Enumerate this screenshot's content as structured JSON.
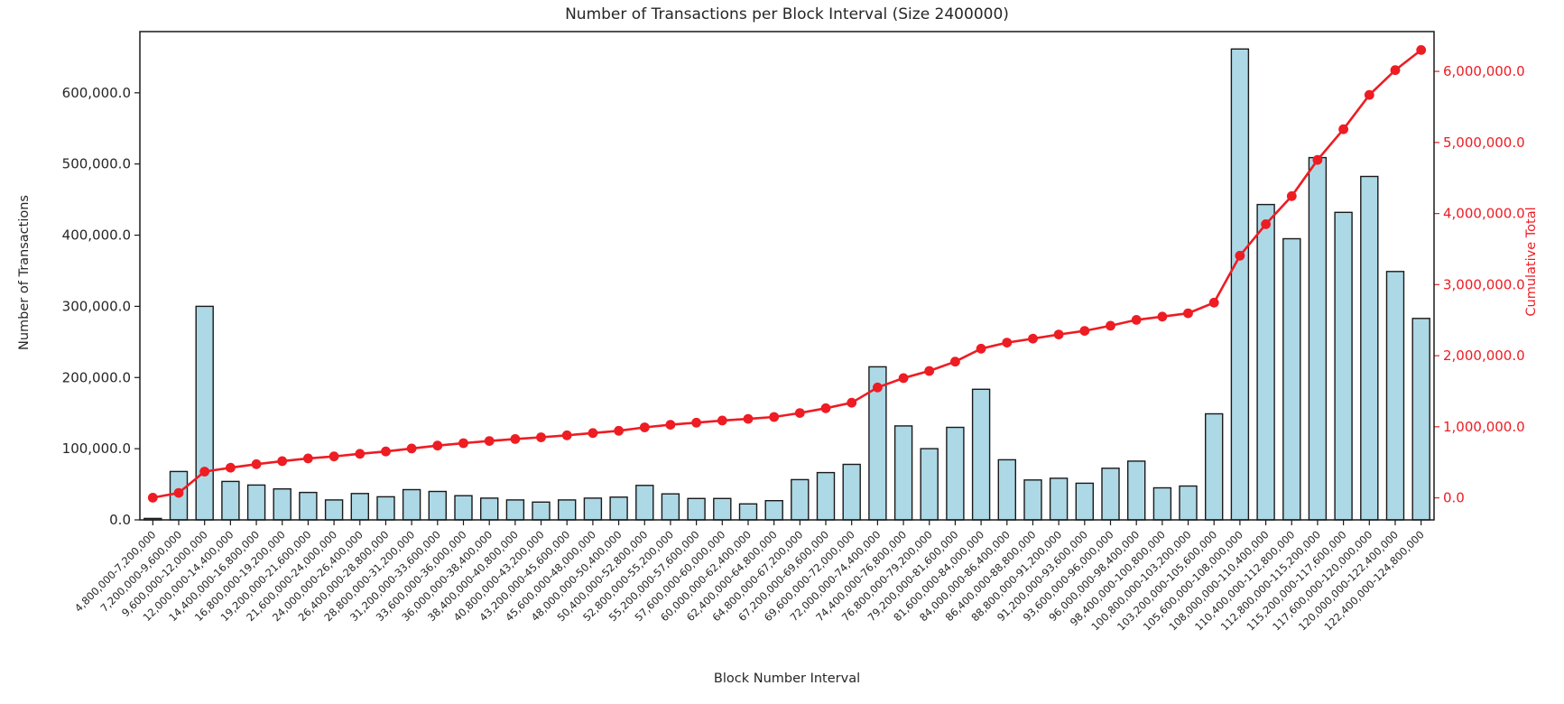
{
  "figure": {
    "title": "Number of Transactions per Block Interval (Size 2400000)",
    "xlabel": "Block Number Interval",
    "ylabel_left": "Number of Transactions",
    "ylabel_right": "Cumulative Total"
  },
  "colors": {
    "background": "#ffffff",
    "bar_fill": "#add8e6",
    "bar_edge": "#1a1a1a",
    "line": "#ee1c23",
    "marker": "#ee1c23",
    "right_axis_text": "#ee1c23",
    "axis_text": "#262626",
    "spine": "#1a1a1a"
  },
  "chart_data": {
    "type": "bar",
    "title": "Number of Transactions per Block Interval (Size 2400000)",
    "xlabel": "Block Number Interval",
    "ylabel_left": "Number of Transactions",
    "ylabel_right": "Cumulative Total",
    "grid": false,
    "legend_position": "none",
    "categories": [
      "4,800,000-7,200,000",
      "7,200,000-9,600,000",
      "9,600,000-12,000,000",
      "12,000,000-14,400,000",
      "14,400,000-16,800,000",
      "16,800,000-19,200,000",
      "19,200,000-21,600,000",
      "21,600,000-24,000,000",
      "24,000,000-26,400,000",
      "26,400,000-28,800,000",
      "28,800,000-31,200,000",
      "31,200,000-33,600,000",
      "33,600,000-36,000,000",
      "36,000,000-38,400,000",
      "38,400,000-40,800,000",
      "40,800,000-43,200,000",
      "43,200,000-45,600,000",
      "45,600,000-48,000,000",
      "48,000,000-50,400,000",
      "50,400,000-52,800,000",
      "52,800,000-55,200,000",
      "55,200,000-57,600,000",
      "57,600,000-60,000,000",
      "60,000,000-62,400,000",
      "62,400,000-64,800,000",
      "64,800,000-67,200,000",
      "67,200,000-69,600,000",
      "69,600,000-72,000,000",
      "72,000,000-74,400,000",
      "74,400,000-76,800,000",
      "76,800,000-79,200,000",
      "79,200,000-81,600,000",
      "81,600,000-84,000,000",
      "84,000,000-86,400,000",
      "86,400,000-88,800,000",
      "88,800,000-91,200,000",
      "91,200,000-93,600,000",
      "93,600,000-96,000,000",
      "96,000,000-98,400,000",
      "98,400,000-100,800,000",
      "100,800,000-103,200,000",
      "103,200,000-105,600,000",
      "105,600,000-108,000,000",
      "108,000,000-110,400,000",
      "110,400,000-112,800,000",
      "112,800,000-115,200,000",
      "115,200,000-117,600,000",
      "117,600,000-120,000,000",
      "120,000,000-122,400,000",
      "122,400,000-124,800,000"
    ],
    "series": [
      {
        "name": "Number of Transactions",
        "type": "bar",
        "axis": "left",
        "values": [
          2000,
          68000,
          300000,
          54000,
          49000,
          43500,
          38500,
          28000,
          37000,
          32500,
          42500,
          40000,
          34000,
          30500,
          28000,
          25000,
          28000,
          30500,
          32000,
          48500,
          36500,
          30000,
          30000,
          22500,
          27000,
          56500,
          66500,
          78000,
          215000,
          132000,
          100000,
          130000,
          183500,
          84500,
          56000,
          58500,
          51500,
          72500,
          82500,
          45000,
          47500,
          149000,
          661500,
          443000,
          395000,
          509000,
          432000,
          482500,
          349000,
          283000
        ]
      },
      {
        "name": "Cumulative Total",
        "type": "line",
        "axis": "right",
        "values": [
          2000,
          70000,
          370000,
          424000,
          473000,
          516500,
          555000,
          583000,
          620000,
          652500,
          695000,
          735000,
          769000,
          799500,
          827500,
          852500,
          880500,
          911000,
          943000,
          991500,
          1028000,
          1058000,
          1088000,
          1110500,
          1137500,
          1194000,
          1260500,
          1338500,
          1553500,
          1685500,
          1785500,
          1915500,
          2099000,
          2183500,
          2239500,
          2298000,
          2349500,
          2422000,
          2504500,
          2549500,
          2597000,
          2746000,
          3407500,
          3850500,
          4245500,
          4754500,
          5186500,
          5669000,
          6018000,
          6301000
        ]
      }
    ],
    "left_axis": {
      "min": 0,
      "max": 686000,
      "ticks": [
        0,
        100000,
        200000,
        300000,
        400000,
        500000,
        600000
      ],
      "tick_labels": [
        "0.0",
        "100,000.0",
        "200,000.0",
        "300,000.0",
        "400,000.0",
        "500,000.0",
        "600,000.0"
      ]
    },
    "right_axis": {
      "min": -310000,
      "max": 6560000,
      "ticks": [
        0,
        1000000,
        2000000,
        3000000,
        4000000,
        5000000,
        6000000
      ],
      "tick_labels": [
        "0.0",
        "1,000,000.0",
        "2,000,000.0",
        "3,000,000.0",
        "4,000,000.0",
        "5,000,000.0",
        "6,000,000.0"
      ]
    }
  }
}
